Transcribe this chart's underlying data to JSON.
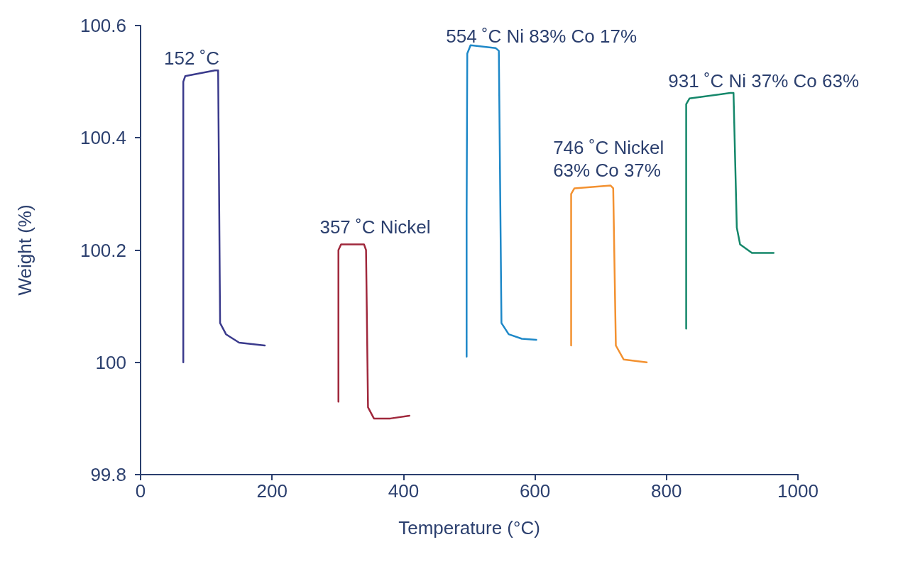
{
  "chart_data": {
    "type": "line",
    "xlabel": "Temperature (°C)",
    "ylabel": "Weight (%)",
    "xlim": [
      0,
      1000
    ],
    "xticks": [
      0,
      200,
      400,
      600,
      800,
      1000
    ],
    "ylim": [
      99.8,
      100.6
    ],
    "yticks": [
      99.8,
      100,
      100.2,
      100.4,
      100.6
    ],
    "grid": false,
    "legend": false,
    "marker": "none",
    "line_style": "solid",
    "series": [
      {
        "name": "152 ˚C",
        "color": "#3a3a8c",
        "x": [
          65,
          65,
          68,
          113,
          118,
          121,
          130,
          150,
          189
        ],
        "values": [
          100.0,
          100.5,
          100.51,
          100.52,
          100.52,
          100.07,
          100.05,
          100.035,
          100.03
        ]
      },
      {
        "name": "357 ˚C Nickel",
        "color": "#a0283c",
        "x": [
          301,
          301,
          305,
          340,
          343,
          346,
          355,
          380,
          409
        ],
        "values": [
          99.93,
          100.2,
          100.21,
          100.21,
          100.2,
          99.92,
          99.9,
          99.9,
          99.905
        ]
      },
      {
        "name": "554 ˚C Ni 83% Co 17%",
        "color": "#1e88c8",
        "x": [
          496,
          496,
          497,
          502,
          540,
          545,
          549,
          560,
          580,
          602
        ],
        "values": [
          100.01,
          100.26,
          100.55,
          100.565,
          100.56,
          100.555,
          100.07,
          100.05,
          100.042,
          100.04
        ]
      },
      {
        "name": "746 ˚C Nickel\n63% Co 37%",
        "color": "#f39130",
        "x": [
          655,
          655,
          660,
          715,
          719,
          723,
          735,
          770
        ],
        "values": [
          100.03,
          100.3,
          100.31,
          100.315,
          100.31,
          100.03,
          100.005,
          100.0
        ]
      },
      {
        "name": "931 ˚C Ni 37% Co 63%",
        "color": "#14876a",
        "x": [
          830,
          830,
          835,
          897,
          902,
          907,
          912,
          930,
          963
        ],
        "values": [
          100.06,
          100.46,
          100.47,
          100.48,
          100.48,
          100.24,
          100.21,
          100.195,
          100.195
        ]
      }
    ]
  }
}
